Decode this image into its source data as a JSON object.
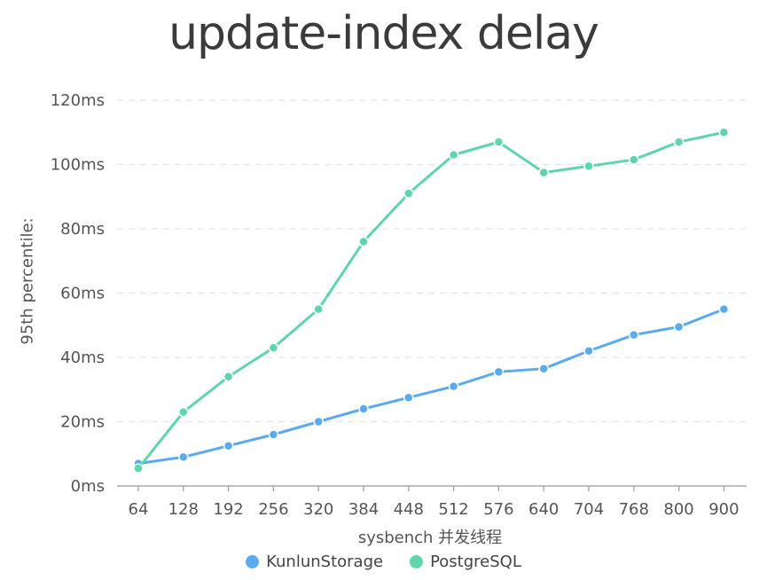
{
  "chart_data": {
    "type": "line",
    "title": "update-index delay",
    "xlabel": "sysbench 并发线程",
    "ylabel": "95th percentile:",
    "categories": [
      "64",
      "128",
      "192",
      "256",
      "320",
      "384",
      "448",
      "512",
      "576",
      "640",
      "704",
      "768",
      "800",
      "900"
    ],
    "yticks": [
      "0ms",
      "20ms",
      "40ms",
      "60ms",
      "80ms",
      "100ms",
      "120ms"
    ],
    "ylim": [
      0,
      120
    ],
    "grid": true,
    "legend_position": "bottom",
    "series": [
      {
        "name": "KunlunStorage",
        "color": "#5aaaf0",
        "values": [
          7,
          9,
          12.5,
          16,
          20,
          24,
          27.5,
          31,
          35.5,
          36.5,
          42,
          47,
          49.5,
          55
        ]
      },
      {
        "name": "PostgreSQL",
        "color": "#5fd6aa",
        "values": [
          5.5,
          23,
          34,
          43,
          55,
          76,
          91,
          103,
          107,
          97.5,
          99.5,
          101.5,
          107,
          110
        ]
      }
    ]
  }
}
